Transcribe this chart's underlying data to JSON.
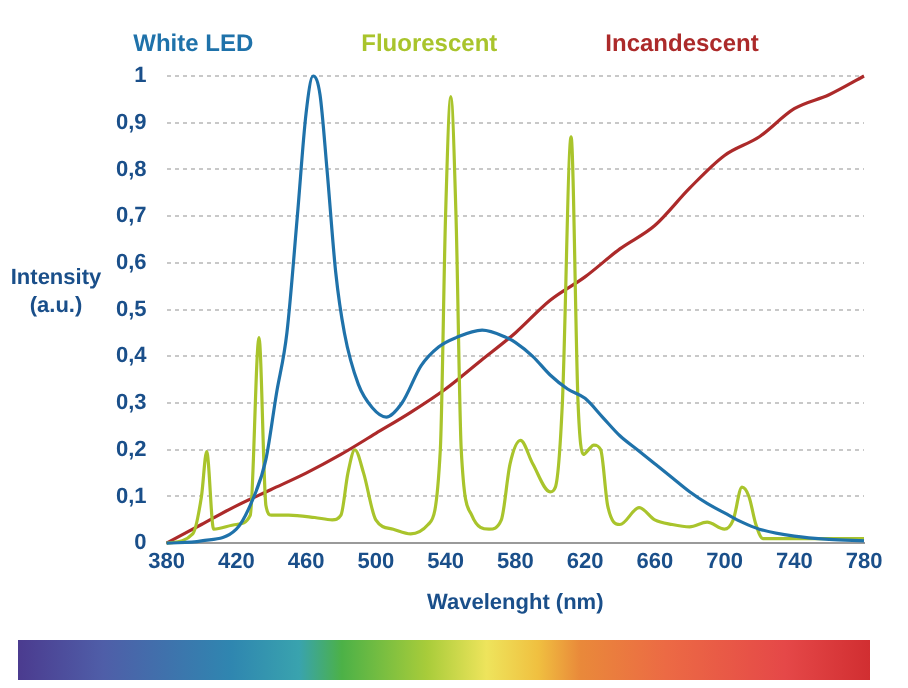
{
  "chart_data": {
    "type": "line",
    "xlabel": "Wavelenght (nm)",
    "ylabel": "Intensity (a.u.)",
    "xlim": [
      380,
      780
    ],
    "xticks": [
      380,
      420,
      460,
      500,
      540,
      580,
      620,
      660,
      700,
      740,
      780
    ],
    "ylim": [
      0,
      1
    ],
    "yticks": [
      0,
      {
        "value": 0.1,
        "label": "0,1"
      },
      {
        "value": 0.2,
        "label": "0,2"
      },
      {
        "value": 0.3,
        "label": "0,3"
      },
      {
        "value": 0.4,
        "label": "0,4"
      },
      {
        "value": 0.5,
        "label": "0,5"
      },
      {
        "value": 0.6,
        "label": "0,6"
      },
      {
        "value": 0.7,
        "label": "0,7"
      },
      {
        "value": 0.8,
        "label": "0,8"
      },
      {
        "value": 0.9,
        "label": "0,9"
      },
      1
    ],
    "grid": "y",
    "legend": "top",
    "marker": "none",
    "line_style": "solid",
    "series": [
      {
        "name": "White LED",
        "color": "#1f72aa",
        "x": [
          380,
          400,
          420,
          429,
          437,
          443,
          449,
          455,
          460,
          464,
          468,
          472,
          477,
          482,
          490,
          498,
          506,
          515,
          526,
          536,
          546,
          561,
          575,
          580,
          590,
          600,
          610,
          620,
          630,
          640,
          650,
          660,
          670,
          680,
          690,
          700,
          710,
          720,
          740,
          760,
          780
        ],
        "values": [
          0,
          0.005,
          0.03,
          0.09,
          0.18,
          0.32,
          0.45,
          0.7,
          0.92,
          1,
          0.96,
          0.8,
          0.58,
          0.45,
          0.34,
          0.29,
          0.27,
          0.3,
          0.38,
          0.42,
          0.44,
          0.456,
          0.44,
          0.43,
          0.4,
          0.36,
          0.33,
          0.31,
          0.27,
          0.23,
          0.2,
          0.17,
          0.14,
          0.11,
          0.085,
          0.065,
          0.045,
          0.03,
          0.015,
          0.008,
          0.005
        ]
      },
      {
        "name": "Fluorescent",
        "color": "#a9c42c",
        "x": [
          380,
          395,
          400,
          403,
          407,
          420,
          428,
          433,
          437,
          440,
          450,
          465,
          475,
          480,
          484,
          488,
          493,
          500,
          510,
          520,
          530,
          537,
          540,
          543,
          546,
          549,
          555,
          565,
          572,
          577,
          583,
          590,
          600,
          603,
          607,
          612,
          616,
          619,
          622,
          625,
          629,
          633,
          640,
          651,
          660,
          670,
          680,
          690,
          700,
          705,
          710,
          714,
          718,
          722,
          740,
          760,
          780
        ],
        "values": [
          0,
          0.02,
          0.1,
          0.196,
          0.03,
          0.04,
          0.06,
          0.44,
          0.08,
          0.06,
          0.06,
          0.055,
          0.05,
          0.06,
          0.15,
          0.2,
          0.15,
          0.05,
          0.03,
          0.02,
          0.04,
          0.2,
          0.7,
          0.956,
          0.7,
          0.2,
          0.06,
          0.03,
          0.05,
          0.17,
          0.22,
          0.17,
          0.11,
          0.12,
          0.3,
          0.87,
          0.3,
          0.19,
          0.2,
          0.21,
          0.2,
          0.08,
          0.04,
          0.076,
          0.05,
          0.04,
          0.035,
          0.045,
          0.03,
          0.05,
          0.12,
          0.1,
          0.04,
          0.01,
          0.01,
          0.01,
          0.01
        ]
      },
      {
        "name": "Incandescent",
        "color": "#ac2a2a",
        "x": [
          380,
          400,
          420,
          440,
          460,
          480,
          500,
          520,
          540,
          560,
          580,
          600,
          620,
          640,
          660,
          680,
          700,
          720,
          740,
          760,
          780
        ],
        "values": [
          0,
          0.04,
          0.08,
          0.115,
          0.15,
          0.19,
          0.235,
          0.28,
          0.33,
          0.39,
          0.45,
          0.52,
          0.57,
          0.63,
          0.68,
          0.76,
          0.83,
          0.87,
          0.93,
          0.96,
          1
        ]
      }
    ]
  }
}
